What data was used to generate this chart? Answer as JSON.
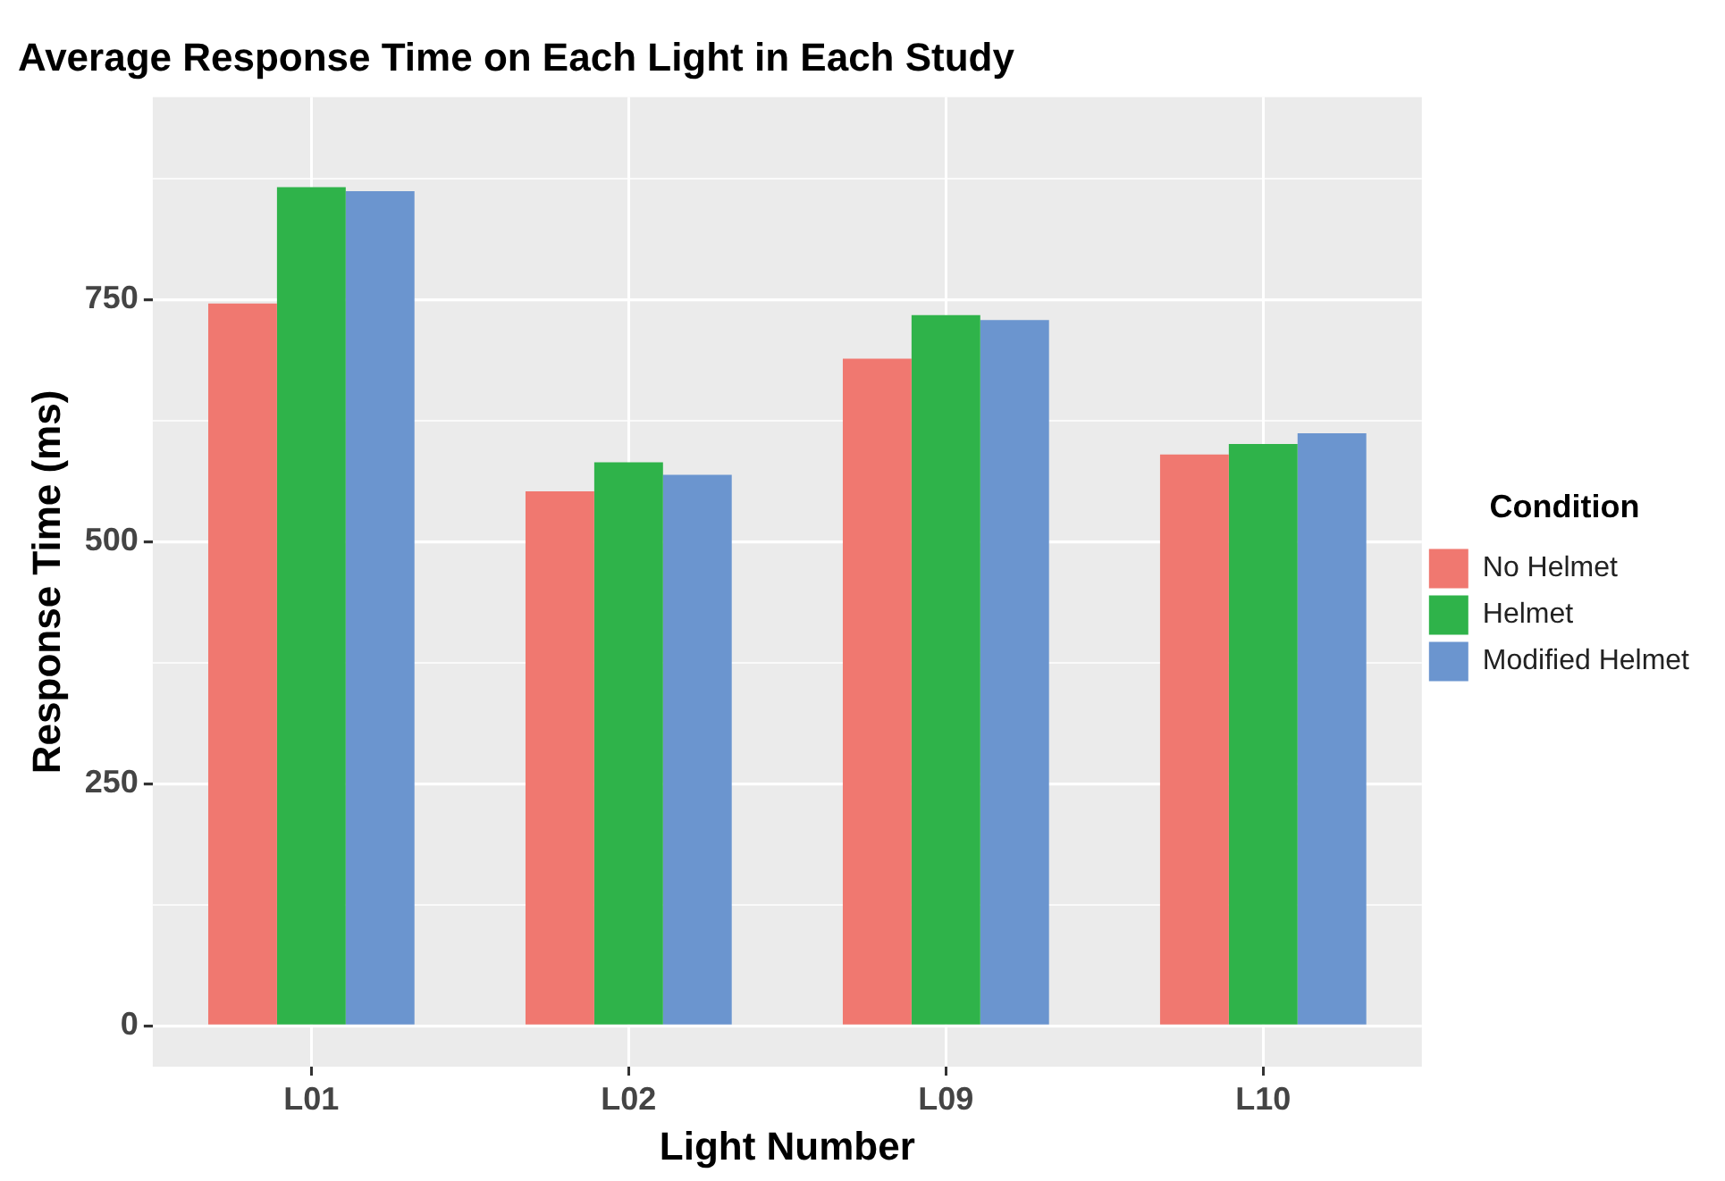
{
  "chart_data": {
    "type": "bar",
    "title": "Average Response Time on Each Light in Each Study",
    "xlabel": "Light Number",
    "ylabel": "Response Time (ms)",
    "legend_title": "Condition",
    "categories": [
      "L01",
      "L02",
      "L09",
      "L10"
    ],
    "series": [
      {
        "name": "No Helmet",
        "color": "#f07870",
        "values": [
          746,
          552,
          689,
          590
        ]
      },
      {
        "name": "Helmet",
        "color": "#2fb34a",
        "values": [
          866,
          582,
          734,
          601
        ]
      },
      {
        "name": "Modified Helmet",
        "color": "#6b95cf",
        "values": [
          862,
          569,
          729,
          612
        ]
      }
    ],
    "ylim": [
      -42,
      959
    ],
    "yticks": [
      0,
      {
        "value": 125,
        "label": null
      },
      250,
      {
        "value": 375,
        "label": null
      },
      500,
      {
        "value": 625,
        "label": null
      },
      750,
      {
        "value": 875,
        "label": null
      }
    ],
    "grid": true,
    "legend": "right"
  }
}
